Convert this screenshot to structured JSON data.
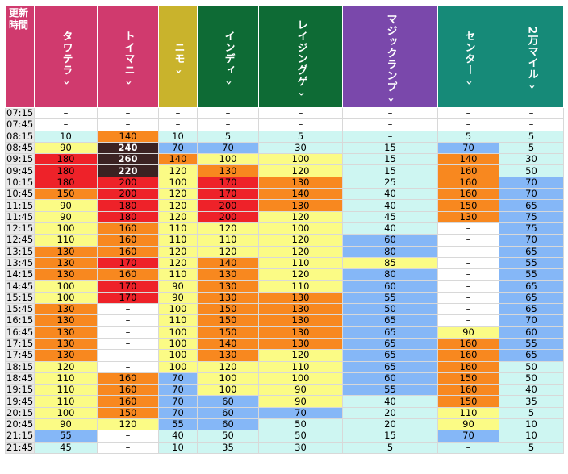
{
  "header": {
    "time_label": "更新時間",
    "arrow_glyph": "›",
    "columns": [
      {
        "name": "タワテラ",
        "color": "#d03a6e"
      },
      {
        "name": "トイマニ",
        "color": "#d03a6e"
      },
      {
        "name": "ニモ",
        "color": "#c9b32c"
      },
      {
        "name": "インディ",
        "color": "#0e6b35"
      },
      {
        "name": "レイジングゲ",
        "color": "#0e6b35"
      },
      {
        "name": "マジックランプ",
        "color": "#7a48ab"
      },
      {
        "name": "センター",
        "color": "#168a78"
      },
      {
        "name": "2万マイル",
        "color": "#168a78"
      }
    ]
  },
  "legend_colors": {
    "0": "#ffffff",
    "1": "#cef6f2",
    "2": "#85b7f7",
    "3": "#fbfb85",
    "4": "#f8881f",
    "5": "#ee2229",
    "6": "#3b2222"
  },
  "rows": [
    {
      "time": "07:15",
      "cells": [
        [
          "–",
          0
        ],
        [
          "–",
          0
        ],
        [
          "–",
          0
        ],
        [
          "–",
          0
        ],
        [
          "–",
          0
        ],
        [
          "–",
          0
        ],
        [
          "–",
          0
        ],
        [
          "–",
          0
        ]
      ]
    },
    {
      "time": "07:45",
      "cells": [
        [
          "–",
          0
        ],
        [
          "–",
          0
        ],
        [
          "–",
          0
        ],
        [
          "–",
          0
        ],
        [
          "–",
          0
        ],
        [
          "–",
          0
        ],
        [
          "–",
          0
        ],
        [
          "–",
          0
        ]
      ]
    },
    {
      "time": "08:15",
      "cells": [
        [
          "10",
          1
        ],
        [
          "140",
          4
        ],
        [
          "10",
          1
        ],
        [
          "5",
          1
        ],
        [
          "5",
          1
        ],
        [
          "–",
          1
        ],
        [
          "5",
          1
        ],
        [
          "5",
          1
        ]
      ]
    },
    {
      "time": "08:45",
      "cells": [
        [
          "90",
          3
        ],
        [
          "240",
          6
        ],
        [
          "70",
          2
        ],
        [
          "70",
          2
        ],
        [
          "30",
          1
        ],
        [
          "15",
          1
        ],
        [
          "70",
          2
        ],
        [
          "5",
          1
        ]
      ]
    },
    {
      "time": "09:15",
      "cells": [
        [
          "180",
          5
        ],
        [
          "260",
          6
        ],
        [
          "140",
          4
        ],
        [
          "100",
          3
        ],
        [
          "100",
          3
        ],
        [
          "15",
          1
        ],
        [
          "140",
          4
        ],
        [
          "30",
          1
        ]
      ]
    },
    {
      "time": "09:45",
      "cells": [
        [
          "180",
          5
        ],
        [
          "220",
          6
        ],
        [
          "120",
          3
        ],
        [
          "130",
          4
        ],
        [
          "120",
          3
        ],
        [
          "15",
          1
        ],
        [
          "160",
          4
        ],
        [
          "50",
          1
        ]
      ]
    },
    {
      "time": "10:15",
      "cells": [
        [
          "180",
          5
        ],
        [
          "200",
          5
        ],
        [
          "100",
          3
        ],
        [
          "170",
          5
        ],
        [
          "130",
          4
        ],
        [
          "25",
          1
        ],
        [
          "160",
          4
        ],
        [
          "70",
          2
        ]
      ]
    },
    {
      "time": "10:45",
      "cells": [
        [
          "150",
          4
        ],
        [
          "200",
          5
        ],
        [
          "120",
          3
        ],
        [
          "170",
          5
        ],
        [
          "140",
          4
        ],
        [
          "40",
          1
        ],
        [
          "160",
          4
        ],
        [
          "70",
          2
        ]
      ]
    },
    {
      "time": "11:15",
      "cells": [
        [
          "90",
          3
        ],
        [
          "180",
          5
        ],
        [
          "120",
          3
        ],
        [
          "200",
          5
        ],
        [
          "130",
          4
        ],
        [
          "40",
          1
        ],
        [
          "150",
          4
        ],
        [
          "65",
          2
        ]
      ]
    },
    {
      "time": "11:45",
      "cells": [
        [
          "90",
          3
        ],
        [
          "180",
          5
        ],
        [
          "120",
          3
        ],
        [
          "200",
          5
        ],
        [
          "120",
          3
        ],
        [
          "45",
          1
        ],
        [
          "130",
          4
        ],
        [
          "75",
          2
        ]
      ]
    },
    {
      "time": "12:15",
      "cells": [
        [
          "100",
          3
        ],
        [
          "160",
          4
        ],
        [
          "110",
          3
        ],
        [
          "120",
          3
        ],
        [
          "100",
          3
        ],
        [
          "40",
          1
        ],
        [
          "–",
          0
        ],
        [
          "75",
          2
        ]
      ]
    },
    {
      "time": "12:45",
      "cells": [
        [
          "110",
          3
        ],
        [
          "160",
          4
        ],
        [
          "110",
          3
        ],
        [
          "110",
          3
        ],
        [
          "120",
          3
        ],
        [
          "60",
          2
        ],
        [
          "–",
          0
        ],
        [
          "70",
          2
        ]
      ]
    },
    {
      "time": "13:15",
      "cells": [
        [
          "130",
          4
        ],
        [
          "160",
          4
        ],
        [
          "120",
          3
        ],
        [
          "120",
          3
        ],
        [
          "120",
          3
        ],
        [
          "80",
          2
        ],
        [
          "–",
          0
        ],
        [
          "65",
          2
        ]
      ]
    },
    {
      "time": "13:45",
      "cells": [
        [
          "130",
          4
        ],
        [
          "170",
          5
        ],
        [
          "120",
          3
        ],
        [
          "140",
          4
        ],
        [
          "110",
          3
        ],
        [
          "85",
          3
        ],
        [
          "–",
          0
        ],
        [
          "55",
          2
        ]
      ]
    },
    {
      "time": "14:15",
      "cells": [
        [
          "130",
          4
        ],
        [
          "160",
          4
        ],
        [
          "110",
          3
        ],
        [
          "130",
          4
        ],
        [
          "120",
          3
        ],
        [
          "80",
          2
        ],
        [
          "–",
          0
        ],
        [
          "55",
          2
        ]
      ]
    },
    {
      "time": "14:45",
      "cells": [
        [
          "100",
          3
        ],
        [
          "170",
          5
        ],
        [
          "90",
          3
        ],
        [
          "130",
          4
        ],
        [
          "110",
          3
        ],
        [
          "60",
          2
        ],
        [
          "–",
          0
        ],
        [
          "65",
          2
        ]
      ]
    },
    {
      "time": "15:15",
      "cells": [
        [
          "100",
          3
        ],
        [
          "170",
          5
        ],
        [
          "90",
          3
        ],
        [
          "130",
          4
        ],
        [
          "130",
          4
        ],
        [
          "55",
          2
        ],
        [
          "–",
          0
        ],
        [
          "65",
          2
        ]
      ]
    },
    {
      "time": "15:45",
      "cells": [
        [
          "130",
          4
        ],
        [
          "–",
          0
        ],
        [
          "100",
          3
        ],
        [
          "150",
          4
        ],
        [
          "130",
          4
        ],
        [
          "50",
          2
        ],
        [
          "–",
          0
        ],
        [
          "65",
          2
        ]
      ]
    },
    {
      "time": "16:15",
      "cells": [
        [
          "130",
          4
        ],
        [
          "–",
          0
        ],
        [
          "110",
          3
        ],
        [
          "150",
          4
        ],
        [
          "130",
          4
        ],
        [
          "65",
          2
        ],
        [
          "–",
          0
        ],
        [
          "70",
          2
        ]
      ]
    },
    {
      "time": "16:45",
      "cells": [
        [
          "130",
          4
        ],
        [
          "–",
          0
        ],
        [
          "100",
          3
        ],
        [
          "150",
          4
        ],
        [
          "130",
          4
        ],
        [
          "65",
          2
        ],
        [
          "90",
          3
        ],
        [
          "60",
          2
        ]
      ]
    },
    {
      "time": "17:15",
      "cells": [
        [
          "130",
          4
        ],
        [
          "–",
          0
        ],
        [
          "100",
          3
        ],
        [
          "140",
          4
        ],
        [
          "130",
          4
        ],
        [
          "65",
          2
        ],
        [
          "160",
          4
        ],
        [
          "55",
          2
        ]
      ]
    },
    {
      "time": "17:45",
      "cells": [
        [
          "130",
          4
        ],
        [
          "–",
          0
        ],
        [
          "100",
          3
        ],
        [
          "130",
          4
        ],
        [
          "120",
          3
        ],
        [
          "65",
          2
        ],
        [
          "160",
          4
        ],
        [
          "65",
          2
        ]
      ]
    },
    {
      "time": "18:15",
      "cells": [
        [
          "120",
          3
        ],
        [
          "–",
          0
        ],
        [
          "100",
          3
        ],
        [
          "120",
          3
        ],
        [
          "110",
          3
        ],
        [
          "65",
          2
        ],
        [
          "160",
          4
        ],
        [
          "50",
          1
        ]
      ]
    },
    {
      "time": "18:45",
      "cells": [
        [
          "110",
          3
        ],
        [
          "160",
          4
        ],
        [
          "70",
          2
        ],
        [
          "100",
          3
        ],
        [
          "100",
          3
        ],
        [
          "60",
          2
        ],
        [
          "150",
          4
        ],
        [
          "50",
          1
        ]
      ]
    },
    {
      "time": "19:15",
      "cells": [
        [
          "110",
          3
        ],
        [
          "160",
          4
        ],
        [
          "70",
          2
        ],
        [
          "100",
          3
        ],
        [
          "90",
          3
        ],
        [
          "55",
          2
        ],
        [
          "160",
          4
        ],
        [
          "40",
          1
        ]
      ]
    },
    {
      "time": "19:45",
      "cells": [
        [
          "110",
          3
        ],
        [
          "160",
          4
        ],
        [
          "70",
          2
        ],
        [
          "60",
          2
        ],
        [
          "90",
          3
        ],
        [
          "40",
          1
        ],
        [
          "150",
          4
        ],
        [
          "35",
          1
        ]
      ]
    },
    {
      "time": "20:15",
      "cells": [
        [
          "100",
          3
        ],
        [
          "150",
          4
        ],
        [
          "70",
          2
        ],
        [
          "60",
          2
        ],
        [
          "70",
          2
        ],
        [
          "20",
          1
        ],
        [
          "110",
          3
        ],
        [
          "5",
          1
        ]
      ]
    },
    {
      "time": "20:45",
      "cells": [
        [
          "90",
          3
        ],
        [
          "120",
          3
        ],
        [
          "55",
          2
        ],
        [
          "60",
          2
        ],
        [
          "50",
          1
        ],
        [
          "20",
          1
        ],
        [
          "90",
          3
        ],
        [
          "10",
          1
        ]
      ]
    },
    {
      "time": "21:15",
      "cells": [
        [
          "55",
          2
        ],
        [
          "–",
          0
        ],
        [
          "40",
          1
        ],
        [
          "50",
          1
        ],
        [
          "50",
          1
        ],
        [
          "15",
          1
        ],
        [
          "70",
          2
        ],
        [
          "10",
          1
        ]
      ]
    },
    {
      "time": "21:45",
      "cells": [
        [
          "45",
          1
        ],
        [
          "–",
          0
        ],
        [
          "10",
          1
        ],
        [
          "35",
          1
        ],
        [
          "30",
          1
        ],
        [
          "5",
          1
        ],
        [
          "–",
          1
        ],
        [
          "5",
          1
        ]
      ]
    }
  ]
}
